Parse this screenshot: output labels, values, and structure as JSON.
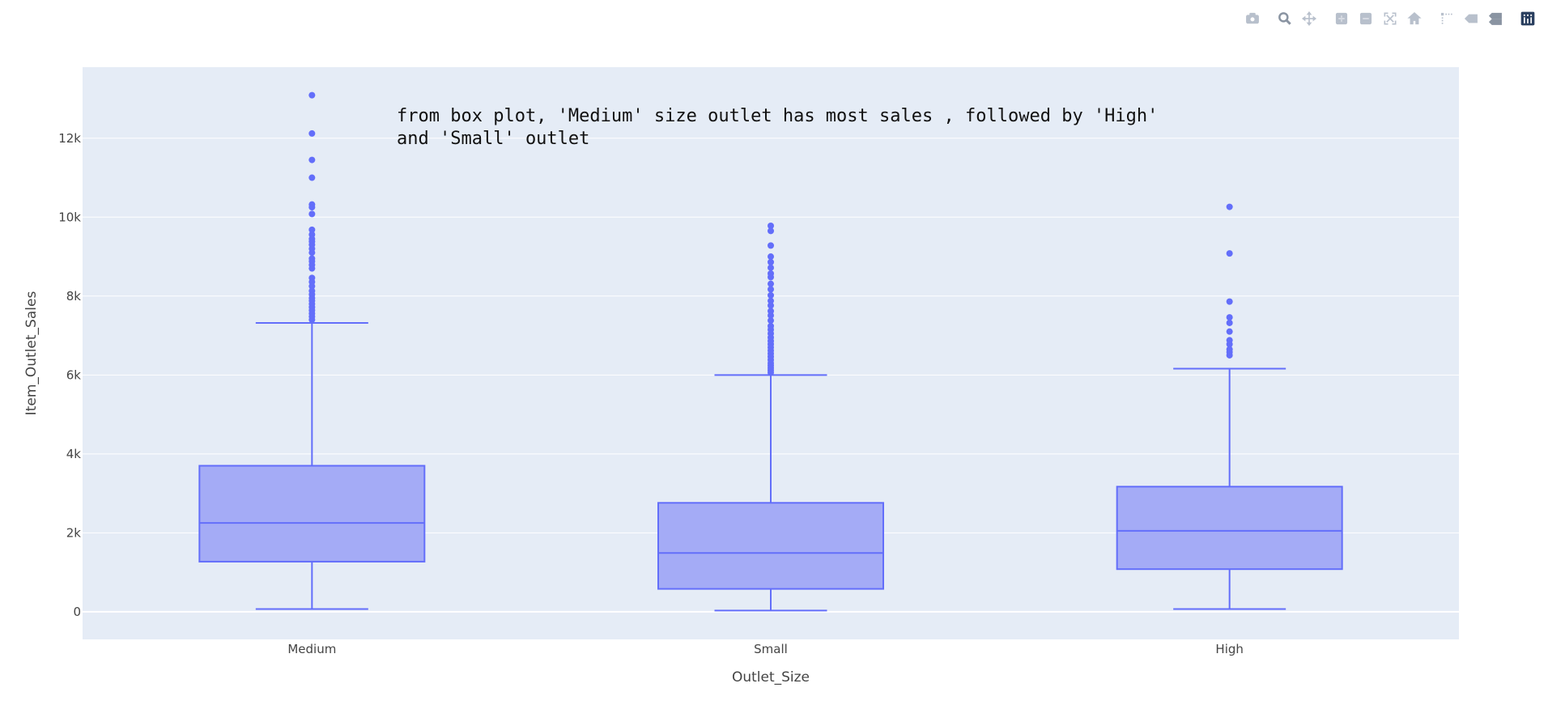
{
  "modebar": {
    "buttons": [
      "camera-icon",
      "zoom-icon",
      "pan-icon",
      "zoom-in-icon",
      "zoom-out-icon",
      "autoscale-icon",
      "reset-axes-icon",
      "spike-lines-icon",
      "hover-closest-icon",
      "hover-compare-icon",
      "plotly-logo-icon"
    ],
    "icon_color": "#b8c0cc",
    "active_color": "#8a94a2"
  },
  "chart_data": {
    "type": "box",
    "xlabel": "Outlet_Size",
    "ylabel": "Item_Outlet_Sales",
    "categories": [
      "Medium",
      "Small",
      "High"
    ],
    "ylim": [
      -700,
      13800
    ],
    "yticks": [
      0,
      2000,
      4000,
      6000,
      8000,
      10000,
      12000
    ],
    "ytick_labels": [
      "0",
      "2k",
      "4k",
      "6k",
      "8k",
      "10k",
      "12k"
    ],
    "grid": true,
    "colors": {
      "box_line": "#636efa",
      "box_fill": "#a4abf6",
      "plot_bg": "#e5ecf6",
      "grid": "#ffffff"
    },
    "annotation": [
      "from box plot, 'Medium' size outlet has most sales , followed by 'High'",
      "and 'Small' outlet"
    ],
    "boxes": [
      {
        "category": "Medium",
        "whisker_low": 70,
        "q1": 1270,
        "median": 2250,
        "q3": 3700,
        "whisker_high": 7320,
        "outliers": [
          13090,
          12120,
          11450,
          11000,
          10320,
          10250,
          10080,
          9680,
          9560,
          9450,
          9380,
          9300,
          9200,
          9100,
          8950,
          8880,
          8790,
          8700,
          8460,
          8360,
          8250,
          8130,
          8040,
          7950,
          7880,
          7800,
          7720,
          7640,
          7560,
          7480,
          7400
        ]
      },
      {
        "category": "Small",
        "whisker_low": 30,
        "q1": 580,
        "median": 1490,
        "q3": 2760,
        "whisker_high": 6000,
        "outliers": [
          9780,
          9650,
          9280,
          9000,
          8860,
          8720,
          8570,
          8480,
          8310,
          8170,
          8020,
          7880,
          7760,
          7620,
          7510,
          7380,
          7240,
          7150,
          7050,
          6950,
          6860,
          6780,
          6700,
          6620,
          6540,
          6460,
          6380,
          6300,
          6240,
          6180,
          6120,
          6060
        ]
      },
      {
        "category": "High",
        "whisker_low": 70,
        "q1": 1080,
        "median": 2050,
        "q3": 3170,
        "whisker_high": 6160,
        "outliers": [
          10260,
          9080,
          7860,
          7460,
          7320,
          7100,
          6880,
          6780,
          6650,
          6580,
          6500
        ]
      }
    ]
  }
}
